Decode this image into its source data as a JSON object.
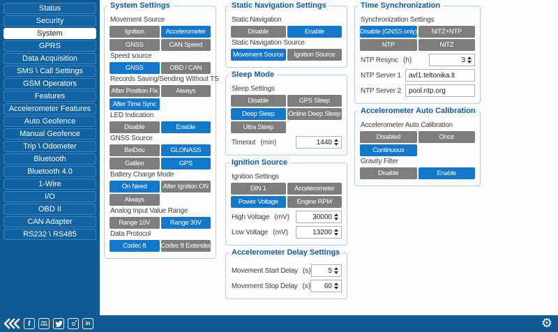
{
  "colors": {
    "sidebar_bg": "#0f5a94",
    "sidebar_item": "#1263a3",
    "accent_blue": "#1278cc",
    "button_gray": "#7d7d7d",
    "group_border": "#aecde8",
    "group_title": "#0b5aa7"
  },
  "icons": {
    "gear": "⚙"
  },
  "sidebar": {
    "items": [
      {
        "label": "Status",
        "selected": false
      },
      {
        "label": "Security",
        "selected": false
      },
      {
        "label": "System",
        "selected": true
      },
      {
        "label": "GPRS",
        "selected": false
      },
      {
        "label": "Data Acquisition",
        "selected": false
      },
      {
        "label": "SMS \\ Call Settings",
        "selected": false
      },
      {
        "label": "GSM Operators",
        "selected": false
      },
      {
        "label": "Features",
        "selected": false
      },
      {
        "label": "Accelerometer Features",
        "selected": false
      },
      {
        "label": "Auto Geofence",
        "selected": false
      },
      {
        "label": "Manual Geofence",
        "selected": false
      },
      {
        "label": "Trip \\ Odometer",
        "selected": false
      },
      {
        "label": "Bluetooth",
        "selected": false
      },
      {
        "label": "Bluetooth 4.0",
        "selected": false
      },
      {
        "label": "1-Wire",
        "selected": false
      },
      {
        "label": "I/O",
        "selected": false
      },
      {
        "label": "OBD II",
        "selected": false
      },
      {
        "label": "CAN Adapter",
        "selected": false
      },
      {
        "label": "RS232 \\ RS485",
        "selected": false
      }
    ]
  },
  "panels": {
    "columns": [
      {
        "groups": [
          {
            "title": "System Settings",
            "rows": [
              {
                "type": "label",
                "text": "Movement Source"
              },
              {
                "type": "buttons",
                "buttons": [
                  {
                    "label": "Ignition",
                    "selected": false
                  },
                  {
                    "label": "Accelerometer",
                    "selected": true
                  }
                ]
              },
              {
                "type": "buttons",
                "buttons": [
                  {
                    "label": "GNSS",
                    "selected": false
                  },
                  {
                    "label": "CAN Speed",
                    "selected": false
                  }
                ]
              },
              {
                "type": "label",
                "text": "Speed source"
              },
              {
                "type": "buttons",
                "buttons": [
                  {
                    "label": "GNSS",
                    "selected": true
                  },
                  {
                    "label": "OBD / CAN",
                    "selected": false
                  }
                ]
              },
              {
                "type": "label",
                "text": "Records Saving/Sending Without TS"
              },
              {
                "type": "buttons",
                "buttons": [
                  {
                    "label": "After Position Fix",
                    "selected": false
                  },
                  {
                    "label": "Always",
                    "selected": false
                  }
                ]
              },
              {
                "type": "buttons",
                "buttons": [
                  {
                    "label": "After Time Sync",
                    "selected": true
                  },
                  null
                ]
              },
              {
                "type": "label",
                "text": "LED Indication"
              },
              {
                "type": "buttons",
                "buttons": [
                  {
                    "label": "Disable",
                    "selected": false
                  },
                  {
                    "label": "Enable",
                    "selected": true
                  }
                ]
              },
              {
                "type": "label",
                "text": "GNSS Source"
              },
              {
                "type": "buttons",
                "buttons": [
                  {
                    "label": "BeiDou",
                    "selected": false
                  },
                  {
                    "label": "GLONASS",
                    "selected": true
                  }
                ]
              },
              {
                "type": "buttons",
                "buttons": [
                  {
                    "label": "Galileo",
                    "selected": false
                  },
                  {
                    "label": "GPS",
                    "selected": true
                  }
                ]
              },
              {
                "type": "label",
                "text": "Battery Charge Mode"
              },
              {
                "type": "buttons",
                "buttons": [
                  {
                    "label": "On Need",
                    "selected": true
                  },
                  {
                    "label": "After Ignition ON",
                    "selected": false
                  }
                ]
              },
              {
                "type": "buttons",
                "buttons": [
                  {
                    "label": "Always",
                    "selected": false
                  },
                  null
                ]
              },
              {
                "type": "label",
                "text": "Analog Input Value Range"
              },
              {
                "type": "buttons",
                "buttons": [
                  {
                    "label": "Range 10V",
                    "selected": false
                  },
                  {
                    "label": "Range 30V",
                    "selected": true
                  }
                ]
              },
              {
                "type": "label",
                "text": "Data Protocol"
              },
              {
                "type": "buttons",
                "buttons": [
                  {
                    "label": "Codec 8",
                    "selected": true
                  },
                  {
                    "label": "Codec 8 Extended",
                    "selected": false
                  }
                ]
              }
            ]
          }
        ]
      },
      {
        "groups": [
          {
            "title": "Static Navigation Settings",
            "rows": [
              {
                "type": "label",
                "text": "Static Navigation"
              },
              {
                "type": "buttons",
                "buttons": [
                  {
                    "label": "Disable",
                    "selected": false
                  },
                  {
                    "label": "Enable",
                    "selected": true
                  }
                ]
              },
              {
                "type": "label",
                "text": "Static Navigation Source"
              },
              {
                "type": "buttons",
                "buttons": [
                  {
                    "label": "Movement Source",
                    "selected": true
                  },
                  {
                    "label": "Ignition Source",
                    "selected": false
                  }
                ]
              }
            ]
          },
          {
            "title": "Sleep Mode",
            "rows": [
              {
                "type": "label",
                "text": "Sleep Settings"
              },
              {
                "type": "buttons",
                "buttons": [
                  {
                    "label": "Disable",
                    "selected": false
                  },
                  {
                    "label": "GPS Sleep",
                    "selected": false
                  }
                ]
              },
              {
                "type": "buttons",
                "buttons": [
                  {
                    "label": "Deep Sleep",
                    "selected": true
                  },
                  {
                    "label": "Online Deep Sleep",
                    "selected": false
                  }
                ]
              },
              {
                "type": "buttons",
                "buttons": [
                  {
                    "label": "Ultra Sleep",
                    "selected": false
                  },
                  null
                ]
              },
              {
                "type": "number",
                "label": "Timeout",
                "unit": "(min)",
                "value": "1440"
              }
            ]
          },
          {
            "title": "Ignition Source",
            "rows": [
              {
                "type": "label",
                "text": "Ignition Settings"
              },
              {
                "type": "buttons",
                "buttons": [
                  {
                    "label": "DIN 1",
                    "selected": false
                  },
                  {
                    "label": "Accelerometer",
                    "selected": false
                  }
                ]
              },
              {
                "type": "buttons",
                "buttons": [
                  {
                    "label": "Power Voltage",
                    "selected": true
                  },
                  {
                    "label": "Engine RPM",
                    "selected": false
                  }
                ]
              },
              {
                "type": "number",
                "label": "High Voltage",
                "unit": "(mV)",
                "value": "30000"
              },
              {
                "type": "number",
                "label": "Low Voltage",
                "unit": "(mV)",
                "value": "13200"
              }
            ]
          },
          {
            "title": "Accelerometer Delay Settings",
            "rows": [
              {
                "type": "number",
                "label": "Movement Start Delay",
                "unit": "(s)",
                "value": "5"
              },
              {
                "type": "number",
                "label": "Movement Stop Delay",
                "unit": "(s)",
                "value": "60"
              }
            ]
          }
        ]
      },
      {
        "groups": [
          {
            "title": "Time Synchronization",
            "rows": [
              {
                "type": "label",
                "text": "Synchronization Settings"
              },
              {
                "type": "buttons",
                "buttons": [
                  {
                    "label": "Disable (GNSS only)",
                    "selected": true
                  },
                  {
                    "label": "NITZ+NTP",
                    "selected": false
                  }
                ]
              },
              {
                "type": "buttons",
                "buttons": [
                  {
                    "label": "NTP",
                    "selected": false
                  },
                  {
                    "label": "NITZ",
                    "selected": false
                  }
                ]
              },
              {
                "type": "number",
                "label": "NTP Resync",
                "unit": "(h)",
                "value": "3"
              },
              {
                "type": "text",
                "label": "NTP Server 1",
                "value": "avl1.teltonika.lt"
              },
              {
                "type": "text",
                "label": "NTP Server 2",
                "value": "pool.ntp.org"
              }
            ]
          },
          {
            "title": "Accelerometer Auto Calibration",
            "rows": [
              {
                "type": "label",
                "text": "Accelerometer Auto Calibration"
              },
              {
                "type": "buttons",
                "buttons": [
                  {
                    "label": "Disabled",
                    "selected": false
                  },
                  {
                    "label": "Once",
                    "selected": false
                  }
                ]
              },
              {
                "type": "buttons",
                "buttons": [
                  {
                    "label": "Continuous",
                    "selected": true
                  },
                  null
                ]
              },
              {
                "type": "label",
                "text": "Gravity Filter"
              },
              {
                "type": "buttons",
                "buttons": [
                  {
                    "label": "Disable",
                    "selected": false
                  },
                  {
                    "label": "Enable",
                    "selected": true
                  }
                ]
              }
            ]
          }
        ]
      }
    ]
  },
  "footer": {
    "social_icons": [
      "collapse-chevrons-icon",
      "facebook-icon",
      "youtube-icon",
      "twitter-icon",
      "instagram-icon",
      "linkedin-icon"
    ]
  }
}
